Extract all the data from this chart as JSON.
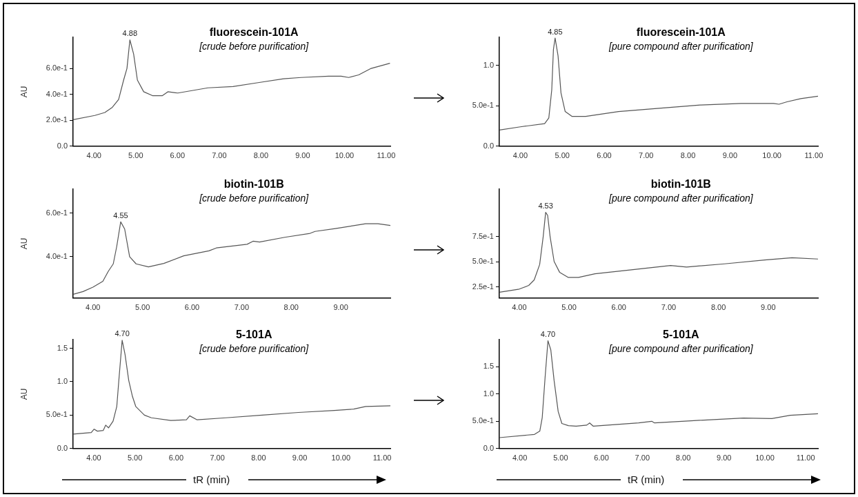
{
  "chart_data": [
    {
      "type": "line",
      "title": "fluorescein-101A",
      "subtitle": "[crude before purification]",
      "ylabel": "AU",
      "marker": "none",
      "x": [
        3.5,
        4.02,
        4.26,
        4.44,
        4.59,
        4.71,
        4.79,
        4.86,
        4.95,
        5.04,
        5.19,
        5.4,
        5.64,
        5.77,
        6.01,
        6.73,
        7.33,
        7.93,
        8.54,
        8.96,
        9.62,
        9.92,
        10.1,
        10.34,
        10.64,
        11.09
      ],
      "series": [
        {
          "color": "#555555",
          "values": [
            0.205,
            0.237,
            0.26,
            0.3,
            0.36,
            0.51,
            0.6,
            0.82,
            0.71,
            0.51,
            0.42,
            0.39,
            0.39,
            0.42,
            0.41,
            0.45,
            0.46,
            0.49,
            0.52,
            0.53,
            0.54,
            0.54,
            0.53,
            0.55,
            0.6,
            0.64
          ]
        }
      ],
      "xlim": [
        3.5,
        11.1
      ],
      "xticks": [
        {
          "value": 4,
          "label": "4.00"
        },
        {
          "value": 5,
          "label": "5.00"
        },
        {
          "value": 6,
          "label": "6.00"
        },
        {
          "value": 7,
          "label": "7.00"
        },
        {
          "value": 8,
          "label": "8.00"
        },
        {
          "value": 9,
          "label": "9.00"
        },
        {
          "value": 10,
          "label": "10.00"
        },
        {
          "value": 11,
          "label": "11.00"
        }
      ],
      "ylim": [
        0,
        0.84
      ],
      "yticks": [
        {
          "value": 0,
          "label": "0.0"
        },
        {
          "value": 0.2,
          "label": "2.0e-1"
        },
        {
          "value": 0.4,
          "label": "4.0e-1"
        },
        {
          "value": 0.6,
          "label": "6.0e-1"
        }
      ],
      "annotations": [
        {
          "text": "4.88",
          "x": 4.86,
          "y": 0.82
        }
      ]
    },
    {
      "type": "line",
      "title": "fluorescein-101A",
      "subtitle": "[pure compound after purification]",
      "marker": "none",
      "x": [
        3.5,
        4.0,
        4.58,
        4.68,
        4.75,
        4.79,
        4.83,
        4.9,
        4.97,
        5.07,
        5.23,
        5.56,
        6.34,
        7.31,
        8.29,
        9.26,
        10.04,
        10.17,
        10.36,
        10.69,
        11.1
      ],
      "series": [
        {
          "color": "#555555",
          "values": [
            0.2,
            0.24,
            0.28,
            0.35,
            0.7,
            1.2,
            1.34,
            1.12,
            0.66,
            0.43,
            0.37,
            0.37,
            0.43,
            0.47,
            0.51,
            0.53,
            0.53,
            0.52,
            0.55,
            0.59,
            0.62
          ]
        }
      ],
      "xlim": [
        3.5,
        11.1
      ],
      "xticks": [
        {
          "value": 4,
          "label": "4.00"
        },
        {
          "value": 5,
          "label": "5.00"
        },
        {
          "value": 6,
          "label": "6.00"
        },
        {
          "value": 7,
          "label": "7.00"
        },
        {
          "value": 8,
          "label": "8.00"
        },
        {
          "value": 9,
          "label": "9.00"
        },
        {
          "value": 10,
          "label": "10.00"
        },
        {
          "value": 11,
          "label": "11.00"
        }
      ],
      "ylim": [
        0,
        1.35
      ],
      "yticks": [
        {
          "value": 0,
          "label": "0.0"
        },
        {
          "value": 0.5,
          "label": "5.0e-1"
        },
        {
          "value": 1,
          "label": "1.0"
        }
      ],
      "annotations": [
        {
          "text": "4.85",
          "x": 4.83,
          "y": 1.34
        }
      ]
    },
    {
      "type": "line",
      "title": "biotin-101B",
      "subtitle": "[crude before purification]",
      "ylabel": "AU",
      "marker": "none",
      "x": [
        3.6,
        3.8,
        4.0,
        4.2,
        4.31,
        4.41,
        4.48,
        4.56,
        4.64,
        4.74,
        4.87,
        5.12,
        5.43,
        5.83,
        6.34,
        6.49,
        7.11,
        7.23,
        7.36,
        7.87,
        8.38,
        8.48,
        8.89,
        9.5,
        9.75,
        10.0
      ],
      "series": [
        {
          "color": "#555555",
          "values": [
            0.227,
            0.24,
            0.26,
            0.287,
            0.333,
            0.367,
            0.447,
            0.56,
            0.527,
            0.4,
            0.367,
            0.353,
            0.369,
            0.404,
            0.427,
            0.44,
            0.457,
            0.471,
            0.467,
            0.489,
            0.507,
            0.516,
            0.529,
            0.551,
            0.551,
            0.543
          ]
        }
      ],
      "xlim": [
        3.6,
        10.0
      ],
      "xticks": [
        {
          "value": 4,
          "label": "4.00"
        },
        {
          "value": 5,
          "label": "5.00"
        },
        {
          "value": 6,
          "label": "6.00"
        },
        {
          "value": 7,
          "label": "7.00"
        },
        {
          "value": 8,
          "label": "8.00"
        },
        {
          "value": 9,
          "label": "9.00"
        }
      ],
      "ylim": [
        0.21,
        0.71
      ],
      "yticks": [
        {
          "value": 0.4,
          "label": "4.0e-1"
        },
        {
          "value": 0.6,
          "label": "6.0e-1"
        }
      ],
      "annotations": [
        {
          "text": "4.55",
          "x": 4.56,
          "y": 0.56
        }
      ]
    },
    {
      "type": "line",
      "title": "biotin-101B",
      "subtitle": "[pure compound after purification]",
      "marker": "none",
      "x": [
        3.6,
        4.0,
        4.19,
        4.3,
        4.41,
        4.48,
        4.53,
        4.57,
        4.62,
        4.7,
        4.81,
        4.98,
        5.19,
        5.52,
        6.22,
        7.04,
        7.36,
        8.12,
        8.93,
        9.48,
        10.0
      ],
      "series": [
        {
          "color": "#555555",
          "values": [
            0.198,
            0.229,
            0.265,
            0.32,
            0.473,
            0.747,
            0.99,
            0.96,
            0.747,
            0.503,
            0.396,
            0.345,
            0.345,
            0.381,
            0.418,
            0.463,
            0.448,
            0.479,
            0.518,
            0.54,
            0.527
          ]
        }
      ],
      "xlim": [
        3.6,
        10.0
      ],
      "xticks": [
        {
          "value": 4,
          "label": "4.00"
        },
        {
          "value": 5,
          "label": "5.00"
        },
        {
          "value": 6,
          "label": "6.00"
        },
        {
          "value": 7,
          "label": "7.00"
        },
        {
          "value": 8,
          "label": "8.00"
        },
        {
          "value": 9,
          "label": "9.00"
        }
      ],
      "ylim": [
        0.14,
        1.22
      ],
      "yticks": [
        {
          "value": 0.25,
          "label": "2.5e-1"
        },
        {
          "value": 0.5,
          "label": "5.0e-1"
        },
        {
          "value": 0.75,
          "label": "7.5e-1"
        }
      ],
      "annotations": [
        {
          "text": "4.53",
          "x": 4.53,
          "y": 0.99
        }
      ]
    },
    {
      "type": "line",
      "title": "5-101A",
      "subtitle": "[crude before purification]",
      "ylabel": "AU",
      "xlabel": "tR (min)",
      "marker": "none",
      "x": [
        3.5,
        3.94,
        4.01,
        4.09,
        4.23,
        4.29,
        4.36,
        4.47,
        4.56,
        4.61,
        4.69,
        4.76,
        4.85,
        4.94,
        5.02,
        5.23,
        5.4,
        5.87,
        6.25,
        6.33,
        6.51,
        7.21,
        8.09,
        8.97,
        9.84,
        10.31,
        10.6,
        11.2
      ],
      "series": [
        {
          "color": "#555555",
          "values": [
            0.217,
            0.239,
            0.29,
            0.26,
            0.27,
            0.35,
            0.31,
            0.41,
            0.63,
            1.02,
            1.62,
            1.41,
            1.02,
            0.78,
            0.63,
            0.5,
            0.46,
            0.42,
            0.43,
            0.49,
            0.43,
            0.46,
            0.5,
            0.54,
            0.57,
            0.59,
            0.63,
            0.64
          ]
        }
      ],
      "xlim": [
        3.5,
        11.2
      ],
      "xticks": [
        {
          "value": 4,
          "label": "4.00"
        },
        {
          "value": 5,
          "label": "5.00"
        },
        {
          "value": 6,
          "label": "6.00"
        },
        {
          "value": 7,
          "label": "7.00"
        },
        {
          "value": 8,
          "label": "8.00"
        },
        {
          "value": 9,
          "label": "9.00"
        },
        {
          "value": 10,
          "label": "10.00"
        },
        {
          "value": 11,
          "label": "11.00"
        }
      ],
      "ylim": [
        0,
        1.63
      ],
      "yticks": [
        {
          "value": 0,
          "label": "0.0"
        },
        {
          "value": 0.5,
          "label": "5.0e-1"
        },
        {
          "value": 1,
          "label": "1.0"
        },
        {
          "value": 1.5,
          "label": "1.5"
        }
      ],
      "annotations": [
        {
          "text": "4.70",
          "x": 4.69,
          "y": 1.62
        }
      ]
    },
    {
      "type": "line",
      "title": "5-101A",
      "subtitle": "[pure compound after purification]",
      "xlabel": "tR (min)",
      "marker": "none",
      "x": [
        3.5,
        4.36,
        4.49,
        4.55,
        4.62,
        4.69,
        4.76,
        4.84,
        4.94,
        5.03,
        5.19,
        5.38,
        5.64,
        5.71,
        5.8,
        6.91,
        7.23,
        7.3,
        8.19,
        9.47,
        10.17,
        10.62,
        11.3
      ],
      "series": [
        {
          "color": "#555555",
          "values": [
            0.2,
            0.26,
            0.32,
            0.57,
            1.31,
            1.98,
            1.81,
            1.25,
            0.68,
            0.46,
            0.42,
            0.41,
            0.43,
            0.47,
            0.41,
            0.47,
            0.5,
            0.47,
            0.51,
            0.56,
            0.55,
            0.61,
            0.64
          ]
        }
      ],
      "xlim": [
        3.5,
        11.3
      ],
      "xticks": [
        {
          "value": 4,
          "label": "4.00"
        },
        {
          "value": 5,
          "label": "5.00"
        },
        {
          "value": 6,
          "label": "6.00"
        },
        {
          "value": 7,
          "label": "7.00"
        },
        {
          "value": 8,
          "label": "8.00"
        },
        {
          "value": 9,
          "label": "9.00"
        },
        {
          "value": 10,
          "label": "10.00"
        },
        {
          "value": 11,
          "label": "11.00"
        }
      ],
      "ylim": [
        0,
        2.0
      ],
      "yticks": [
        {
          "value": 0,
          "label": "0.0"
        },
        {
          "value": 0.5,
          "label": "5.0e-1"
        },
        {
          "value": 1,
          "label": "1.0"
        },
        {
          "value": 1.5,
          "label": "1.5"
        }
      ],
      "annotations": [
        {
          "text": "4.70",
          "x": 4.69,
          "y": 1.98
        }
      ]
    }
  ]
}
